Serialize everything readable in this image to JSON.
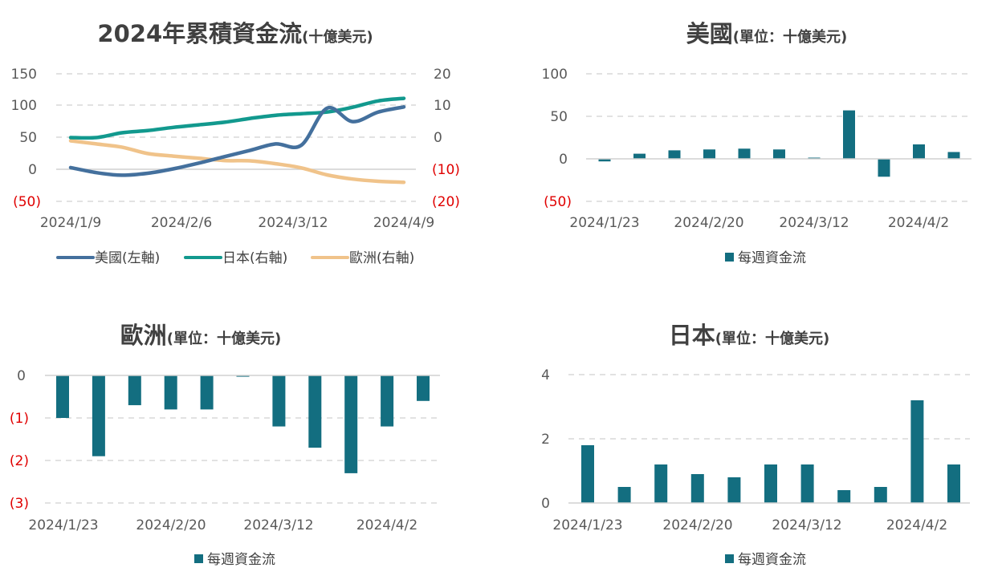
{
  "colors": {
    "us": "#44709d",
    "jp": "#12998e",
    "eu": "#f0c38a",
    "bar": "#136e80",
    "negative_tick": "#e00000"
  },
  "charts": [
    {
      "title_main": "2024年累積資金流",
      "title_sub": "(十億美元)",
      "legend": [
        "美國(左軸)",
        "日本(右軸)",
        "歐洲(右軸)"
      ]
    },
    {
      "title_main": "美國",
      "title_sub": "(單位：十億美元)",
      "legend": [
        "每週資金流"
      ]
    },
    {
      "title_main": "歐洲",
      "title_sub": "(單位：十億美元)",
      "legend": [
        "每週資金流"
      ]
    },
    {
      "title_main": "日本",
      "title_sub": "(單位：十億美元)",
      "legend": [
        "每週資金流"
      ]
    }
  ],
  "chart_data": [
    {
      "type": "line",
      "title": "2024年累積資金流(十億美元)",
      "x_ticks": [
        "2024/1/9",
        "2024/2/6",
        "2024/3/12",
        "2024/4/9"
      ],
      "y_left": {
        "ticks": [
          "150",
          "100",
          "50",
          "0",
          "(50)"
        ],
        "range": [
          -50,
          150
        ]
      },
      "y_right": {
        "ticks": [
          "20",
          "10",
          "0",
          "(10)",
          "(20)"
        ],
        "range": [
          -20,
          20
        ]
      },
      "grid": true,
      "legend_position": "bottom",
      "series": [
        {
          "name": "美國(左軸)",
          "axis": "left",
          "color": "#44709d",
          "values": [
            3,
            -5,
            -9,
            -6,
            1,
            10,
            20,
            30,
            40,
            38,
            96,
            75,
            90,
            98
          ]
        },
        {
          "name": "日本(右軸)",
          "axis": "right",
          "color": "#12998e",
          "values": [
            0,
            0,
            1.5,
            2.2,
            3.2,
            4,
            4.8,
            6,
            7,
            7.5,
            8,
            9.5,
            11.5,
            12.3
          ]
        },
        {
          "name": "歐洲(右軸)",
          "axis": "right",
          "color": "#f0c38a",
          "values": [
            -1,
            -2,
            -3,
            -5,
            -5.8,
            -6.5,
            -7.2,
            -7.3,
            -8.2,
            -9.5,
            -11.7,
            -13,
            -13.7,
            -14
          ]
        }
      ]
    },
    {
      "type": "bar",
      "title": "美國(單位：十億美元)",
      "x_ticks": [
        "2024/1/23",
        "2024/2/20",
        "2024/3/12",
        "2024/4/2"
      ],
      "y_ticks": [
        "100",
        "50",
        "0",
        "(50)"
      ],
      "ylim": [
        -50,
        100
      ],
      "grid": true,
      "legend_position": "bottom",
      "series": [
        {
          "name": "每週資金流",
          "values": [
            -3,
            6,
            10,
            11,
            12,
            11,
            0,
            57,
            -21,
            17,
            8
          ]
        }
      ]
    },
    {
      "type": "bar",
      "title": "歐洲(單位：十億美元)",
      "x_ticks": [
        "2024/1/23",
        "2024/2/20",
        "2024/3/12",
        "2024/4/2"
      ],
      "y_ticks": [
        "0",
        "(1)",
        "(2)",
        "(3)"
      ],
      "ylim": [
        -3,
        0
      ],
      "grid": true,
      "legend_position": "bottom",
      "series": [
        {
          "name": "每週資金流",
          "values": [
            -1.0,
            -1.9,
            -0.7,
            -0.8,
            -0.8,
            -0.03,
            -1.2,
            -1.7,
            -2.3,
            -1.2,
            -0.6
          ]
        }
      ]
    },
    {
      "type": "bar",
      "title": "日本(單位：十億美元)",
      "x_ticks": [
        "2024/1/23",
        "2024/2/20",
        "2024/3/12",
        "2024/4/2"
      ],
      "y_ticks": [
        "4",
        "2",
        "0"
      ],
      "ylim": [
        0,
        4
      ],
      "grid": true,
      "legend_position": "bottom",
      "series": [
        {
          "name": "每週資金流",
          "values": [
            1.8,
            0.5,
            1.2,
            0.9,
            0.8,
            1.2,
            1.2,
            0.4,
            0.5,
            3.2,
            1.2
          ]
        }
      ]
    }
  ]
}
